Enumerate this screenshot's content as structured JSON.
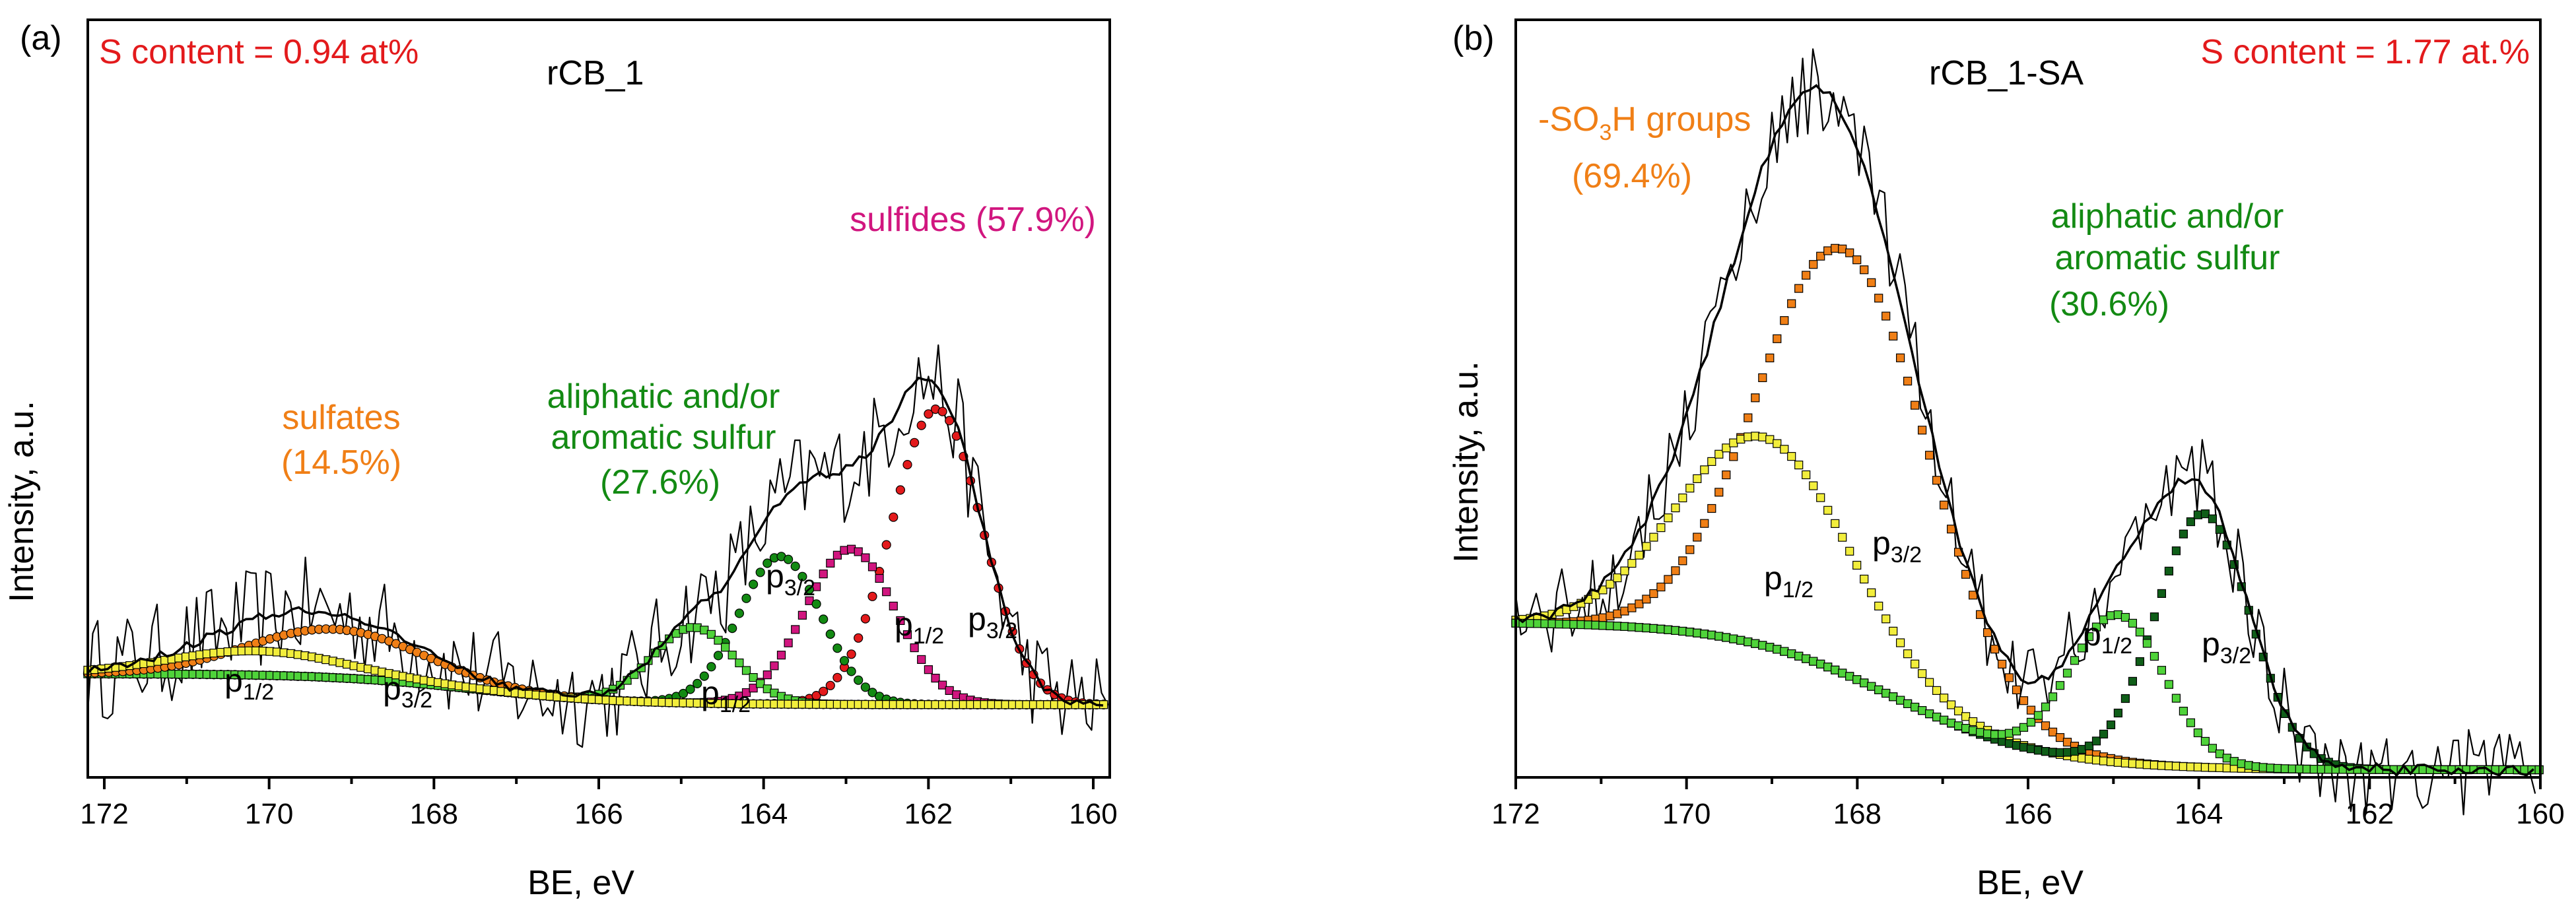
{
  "colors": {
    "red": "#e31a1c",
    "orange": "#f07f16",
    "green": "#138a13",
    "magenta": "#d1167f",
    "yellow": "#f2ee3c",
    "lightgreen": "#4fd33a",
    "darkgreen": "#0f5e18",
    "black": "#000000"
  },
  "chart_data": [
    {
      "type": "line",
      "panel_label": "(a)",
      "title": "rCB_1",
      "s_content": "S content = 0.94 at%",
      "xlabel": "BE, eV",
      "ylabel": "Intensity, a.u.",
      "xlim": [
        172.2,
        159.8
      ],
      "ylim": [
        0,
        100
      ],
      "xticks": [
        172,
        170,
        168,
        166,
        164,
        162,
        160
      ],
      "baseline": {
        "start": 13.7,
        "end": 9.6,
        "step_center": 167.5
      },
      "peaks": [
        {
          "name": "sulfides p3/2",
          "center": 161.9,
          "height": 39,
          "sigma": 0.55,
          "color": "#e31a1c",
          "marker": "circle"
        },
        {
          "name": "sulfides p1/2",
          "center": 162.95,
          "height": 20.5,
          "sigma": 0.55,
          "color": "#d1167f",
          "marker": "square"
        },
        {
          "name": "aliphatic/aromatic p3/2",
          "center": 163.8,
          "height": 19.5,
          "sigma": 0.5,
          "color": "#138a13",
          "marker": "circle"
        },
        {
          "name": "aliphatic/aromatic p1/2",
          "center": 164.85,
          "height": 10,
          "sigma": 0.5,
          "color": "#4fd33a",
          "marker": "square"
        },
        {
          "name": "sulfates p3/2",
          "center": 169.2,
          "height": 6.4,
          "sigma": 1.05,
          "color": "#f07f16",
          "marker": "circle"
        },
        {
          "name": "sulfates p1/2",
          "center": 170.15,
          "height": 3.2,
          "sigma": 1.05,
          "color": "#f2ee3c",
          "marker": "square"
        }
      ],
      "labels": {
        "sulfides": "sulfides (57.9%)",
        "aliphatic_1": "aliphatic and/or",
        "aliphatic_2": "aromatic sulfur",
        "aliphatic_pct": "(27.6%)",
        "sulfates": "sulfates",
        "sulfates_pct": "(14.5%)",
        "p_main": "p",
        "sub_12": "1/2",
        "sub_32": "3/2"
      }
    },
    {
      "type": "line",
      "panel_label": "(b)",
      "title": "rCB_1-SA",
      "s_content": "S content = 1.77 at.%",
      "xlabel": "BE, eV",
      "ylabel": "Intensity, a.u.",
      "xlim": [
        172,
        160
      ],
      "ylim": [
        0,
        100
      ],
      "xticks": [
        172,
        170,
        168,
        166,
        164,
        162,
        160
      ],
      "baseline": {
        "start": 20.5,
        "end": 1.0,
        "step_center": 167.6
      },
      "peaks": [
        {
          "name": "-SO3H p3/2",
          "center": 168.15,
          "height": 56,
          "sigma": 1.0,
          "color": "#f07f16",
          "marker": "square"
        },
        {
          "name": "-SO3H p1/2",
          "center": 169.1,
          "height": 27.5,
          "sigma": 1.0,
          "color": "#f2ee3c",
          "marker": "square"
        },
        {
          "name": "aliphatic/aromatic p3/2",
          "center": 163.95,
          "height": 33.5,
          "sigma": 0.55,
          "color": "#0f5e18",
          "marker": "square"
        },
        {
          "name": "aliphatic/aromatic p1/2",
          "center": 164.95,
          "height": 19.5,
          "sigma": 0.55,
          "color": "#4fd33a",
          "marker": "square"
        }
      ],
      "labels": {
        "so3h_pre": "-SO",
        "so3h_sub": "3",
        "so3h_post": "H groups",
        "so3h_pct": "(69.4%)",
        "aliphatic_1": "aliphatic and/or",
        "aliphatic_2": "aromatic sulfur",
        "aliphatic_pct": "(30.6%)",
        "p_main": "p",
        "sub_12": "1/2",
        "sub_32": "3/2"
      }
    }
  ]
}
